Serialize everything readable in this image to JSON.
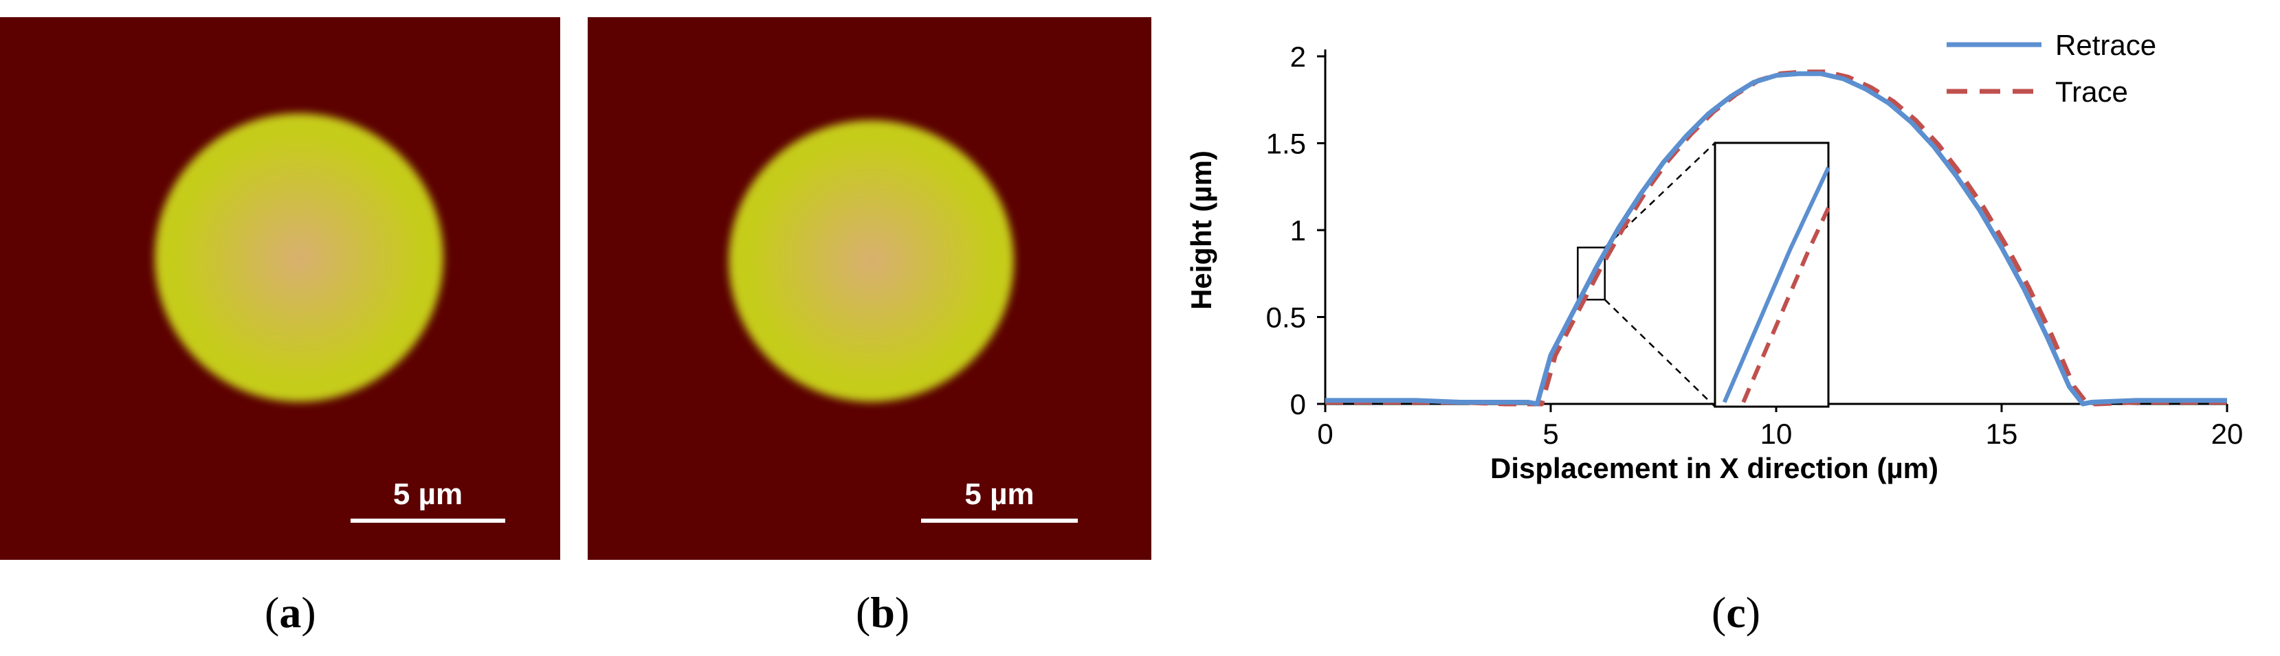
{
  "panels": {
    "a": {
      "scale_label": "5 µm",
      "caption_open": "(",
      "caption_letter": "a",
      "caption_close": ")"
    },
    "b": {
      "scale_label": "5 µm",
      "caption_open": "(",
      "caption_letter": "b",
      "caption_close": ")"
    },
    "c": {
      "caption_open": "(",
      "caption_letter": "c",
      "caption_close": ")"
    }
  },
  "colors": {
    "afm_background": "#5c0000",
    "afm_center": "#d8b070",
    "afm_mid": "#c6cc1a",
    "scalebar": "#ffffff",
    "retrace": "#5b8fd0",
    "trace": "#c0504d"
  },
  "chart_data": {
    "type": "line",
    "title": "",
    "xlabel": "Displacement  in X direction (µm)",
    "ylabel": "Height  (µm)",
    "xlim": [
      0,
      20
    ],
    "ylim": [
      0,
      2
    ],
    "xticks": [
      0,
      5,
      10,
      15,
      20
    ],
    "yticks": [
      0,
      0.5,
      1,
      1.5,
      2
    ],
    "ytick_labels": [
      "0",
      "0.5",
      "1",
      "1.5",
      "2"
    ],
    "grid": false,
    "legend_position": "top-right",
    "series": [
      {
        "name": "Retrace",
        "style": "solid",
        "x": [
          0,
          1,
          2,
          3,
          4,
          4.5,
          4.7,
          5.0,
          5.5,
          6.0,
          6.5,
          7.0,
          7.5,
          8.0,
          8.5,
          9.0,
          9.5,
          10.0,
          10.5,
          11.0,
          11.5,
          12.0,
          12.5,
          13.0,
          13.5,
          14.0,
          14.5,
          15.0,
          15.5,
          16.0,
          16.5,
          16.8,
          17,
          18,
          19,
          20
        ],
        "y": [
          0.02,
          0.02,
          0.02,
          0.01,
          0.01,
          0.01,
          0.0,
          0.28,
          0.53,
          0.78,
          1.01,
          1.21,
          1.39,
          1.54,
          1.67,
          1.77,
          1.85,
          1.89,
          1.9,
          1.9,
          1.87,
          1.81,
          1.73,
          1.62,
          1.48,
          1.31,
          1.12,
          0.9,
          0.66,
          0.39,
          0.1,
          0.0,
          0.01,
          0.02,
          0.02,
          0.02
        ]
      },
      {
        "name": "Trace",
        "style": "dashed",
        "x": [
          0,
          1,
          2,
          3,
          4,
          4.6,
          4.8,
          5.1,
          5.6,
          6.1,
          6.6,
          7.1,
          7.6,
          8.1,
          8.6,
          9.1,
          9.6,
          10.1,
          10.6,
          11.1,
          11.6,
          12.1,
          12.6,
          13.1,
          13.6,
          14.1,
          14.6,
          15.1,
          15.6,
          16.1,
          16.6,
          16.9,
          17.1,
          18,
          19,
          20
        ],
        "y": [
          0.01,
          0.01,
          0.01,
          0.01,
          0.0,
          0.0,
          0.0,
          0.28,
          0.53,
          0.78,
          1.01,
          1.22,
          1.4,
          1.55,
          1.68,
          1.78,
          1.86,
          1.9,
          1.91,
          1.91,
          1.88,
          1.82,
          1.74,
          1.63,
          1.49,
          1.32,
          1.13,
          0.91,
          0.67,
          0.4,
          0.1,
          0.0,
          0.0,
          0.01,
          0.01,
          0.01
        ]
      }
    ],
    "inset": {
      "x_range": [
        5.6,
        6.2
      ],
      "y_range": [
        0.6,
        0.9
      ]
    }
  }
}
